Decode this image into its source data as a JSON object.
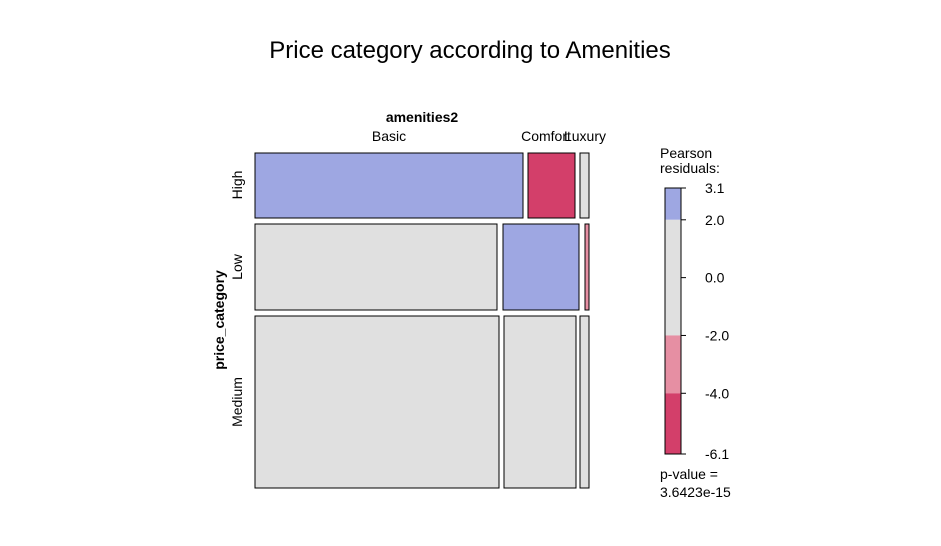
{
  "chart_data": {
    "type": "mosaic",
    "title": "Price category according to Amenities",
    "xvar": "amenities2",
    "yvar": "price_category",
    "x_categories": [
      "Basic",
      "Comfort",
      "Luxury"
    ],
    "y_categories": [
      "High",
      "Low",
      "Medium"
    ],
    "cells": [
      {
        "x": "Basic",
        "y": "High",
        "residual": 3.1
      },
      {
        "x": "Comfort",
        "y": "High",
        "residual": -6.1
      },
      {
        "x": "Luxury",
        "y": "High",
        "residual": 0.0
      },
      {
        "x": "Basic",
        "y": "Low",
        "residual": 0.0
      },
      {
        "x": "Comfort",
        "y": "Low",
        "residual": 3.1
      },
      {
        "x": "Luxury",
        "y": "Low",
        "residual": -3.0
      },
      {
        "x": "Basic",
        "y": "Medium",
        "residual": 0.0
      },
      {
        "x": "Comfort",
        "y": "Medium",
        "residual": 0.0
      },
      {
        "x": "Luxury",
        "y": "Medium",
        "residual": 0.0
      }
    ],
    "legend": {
      "title": "Pearson\nresiduals:",
      "ticks": [
        "3.1",
        "2.0",
        "0.0",
        "-2.0",
        "-4.0",
        "-6.1"
      ],
      "range": [
        -6.1,
        3.1
      ],
      "bands": [
        {
          "from": 2.0,
          "to": 3.1,
          "color": "#9ea7e2"
        },
        {
          "from": -2.0,
          "to": 2.0,
          "color": "#e0e0e0"
        },
        {
          "from": -4.0,
          "to": -2.0,
          "color": "#e68fa3"
        },
        {
          "from": -6.1,
          "to": -4.0,
          "color": "#d33f6a"
        }
      ],
      "pvalue_label": "p-value =",
      "pvalue": "3.6423e-15"
    },
    "colors": {
      "positive": "#9ea7e2",
      "neutral": "#e0e0e0",
      "negative_mid": "#e68fa3",
      "negative_high": "#d33f6a"
    }
  }
}
